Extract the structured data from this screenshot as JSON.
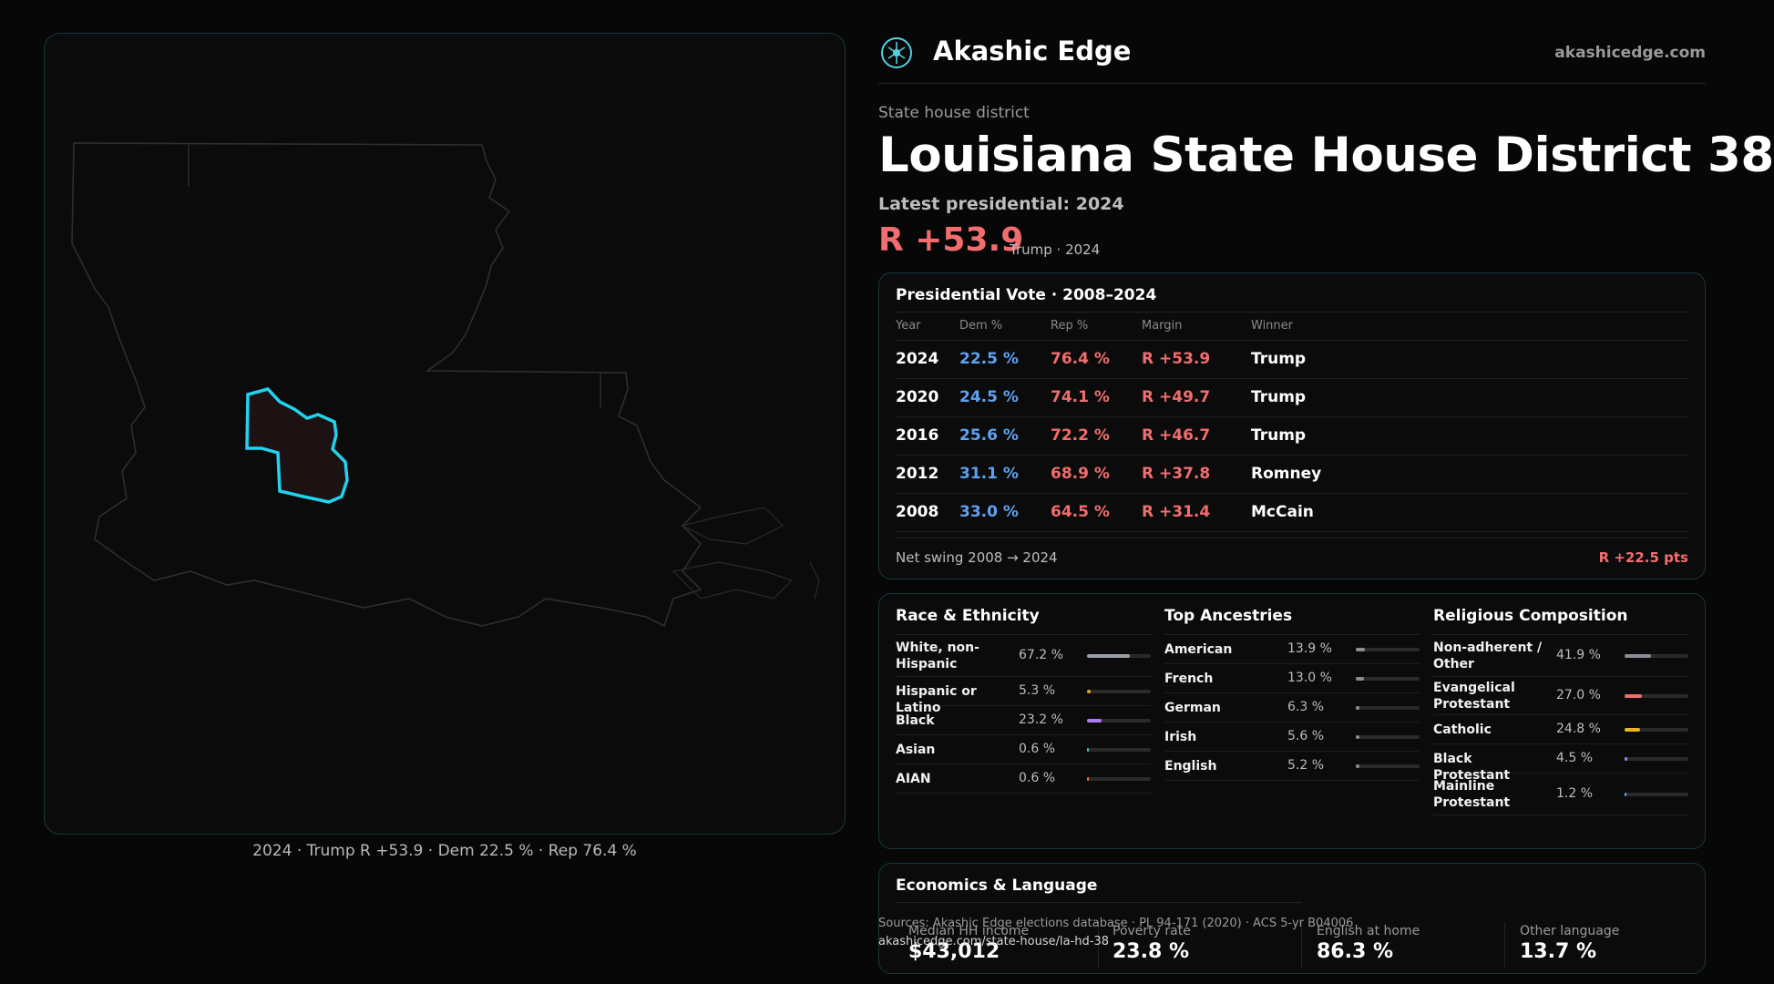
{
  "brand": {
    "name": "Akashic Edge",
    "url": "akashicedge.com"
  },
  "header": {
    "kicker": "State house district",
    "title": "Louisiana State House District 38",
    "latest_label": "Latest presidential: 2024",
    "margin": "R +53.9",
    "margin_sub": "Trump · 2024"
  },
  "map": {
    "caption": "2024 · Trump R +53.9 · Dem 22.5 % · Rep 76.4 %"
  },
  "presidential": {
    "title": "Presidential Vote · 2008–2024",
    "columns": [
      "Year",
      "Dem %",
      "Rep %",
      "Margin",
      "Winner"
    ],
    "rows": [
      {
        "year": "2024",
        "dem": "22.5 %",
        "rep": "76.4 %",
        "margin": "R +53.9",
        "winner": "Trump"
      },
      {
        "year": "2020",
        "dem": "24.5 %",
        "rep": "74.1 %",
        "margin": "R +49.7",
        "winner": "Trump"
      },
      {
        "year": "2016",
        "dem": "25.6 %",
        "rep": "72.2 %",
        "margin": "R +46.7",
        "winner": "Trump"
      },
      {
        "year": "2012",
        "dem": "31.1 %",
        "rep": "68.9 %",
        "margin": "R +37.8",
        "winner": "Romney"
      },
      {
        "year": "2008",
        "dem": "33.0 %",
        "rep": "64.5 %",
        "margin": "R +31.4",
        "winner": "McCain"
      }
    ],
    "net_label": "Net swing 2008 → 2024",
    "net_value": "R +22.5 pts"
  },
  "race": {
    "title": "Race & Ethnicity",
    "items": [
      {
        "label": "White, non-Hispanic",
        "pct": "67.2 %",
        "share": 0.672,
        "color": "#9aa0a8"
      },
      {
        "label": "Hispanic or Latino",
        "pct": "5.3 %",
        "share": 0.053,
        "color": "#e0a030"
      },
      {
        "label": "Black",
        "pct": "23.2 %",
        "share": 0.232,
        "color": "#a77ef0"
      },
      {
        "label": "Asian",
        "pct": "0.6 %",
        "share": 0.006,
        "color": "#3fc7c7"
      },
      {
        "label": "AIAN",
        "pct": "0.6 %",
        "share": 0.006,
        "color": "#e07a3a"
      }
    ]
  },
  "ancestry": {
    "title": "Top Ancestries",
    "items": [
      {
        "label": "American",
        "pct": "13.9 %",
        "share": 0.139,
        "color": "#8a8f96"
      },
      {
        "label": "French",
        "pct": "13.0 %",
        "share": 0.13,
        "color": "#8a8f96"
      },
      {
        "label": "German",
        "pct": "6.3 %",
        "share": 0.063,
        "color": "#8a8f96"
      },
      {
        "label": "Irish",
        "pct": "5.6 %",
        "share": 0.056,
        "color": "#8a8f96"
      },
      {
        "label": "English",
        "pct": "5.2 %",
        "share": 0.052,
        "color": "#8a8f96"
      }
    ]
  },
  "religion": {
    "title": "Religious Composition",
    "items": [
      {
        "label": "Non-adherent / Other",
        "pct": "41.9 %",
        "share": 0.419,
        "color": "#8a8f96"
      },
      {
        "label": "Evangelical Protestant",
        "pct": "27.0 %",
        "share": 0.27,
        "color": "#f26d6d"
      },
      {
        "label": "Catholic",
        "pct": "24.8 %",
        "share": 0.248,
        "color": "#e8b628"
      },
      {
        "label": "Black Protestant",
        "pct": "4.5 %",
        "share": 0.045,
        "color": "#a77ef0"
      },
      {
        "label": "Mainline Protestant",
        "pct": "1.2 %",
        "share": 0.012,
        "color": "#5ea2f2"
      }
    ]
  },
  "economics": {
    "title": "Economics & Language",
    "items": [
      {
        "label": "Median HH income",
        "value": "$43,012"
      },
      {
        "label": "Poverty rate",
        "value": "23.8 %"
      },
      {
        "label": "English at home",
        "value": "86.3 %"
      },
      {
        "label": "Other language",
        "value": "13.7 %"
      }
    ],
    "sources": "Sources: Akashic Edge elections database · PL 94-171 (2020) · ACS 5-yr B04006",
    "source_url": "akashicedge.com/state-house/la-hd-38"
  }
}
